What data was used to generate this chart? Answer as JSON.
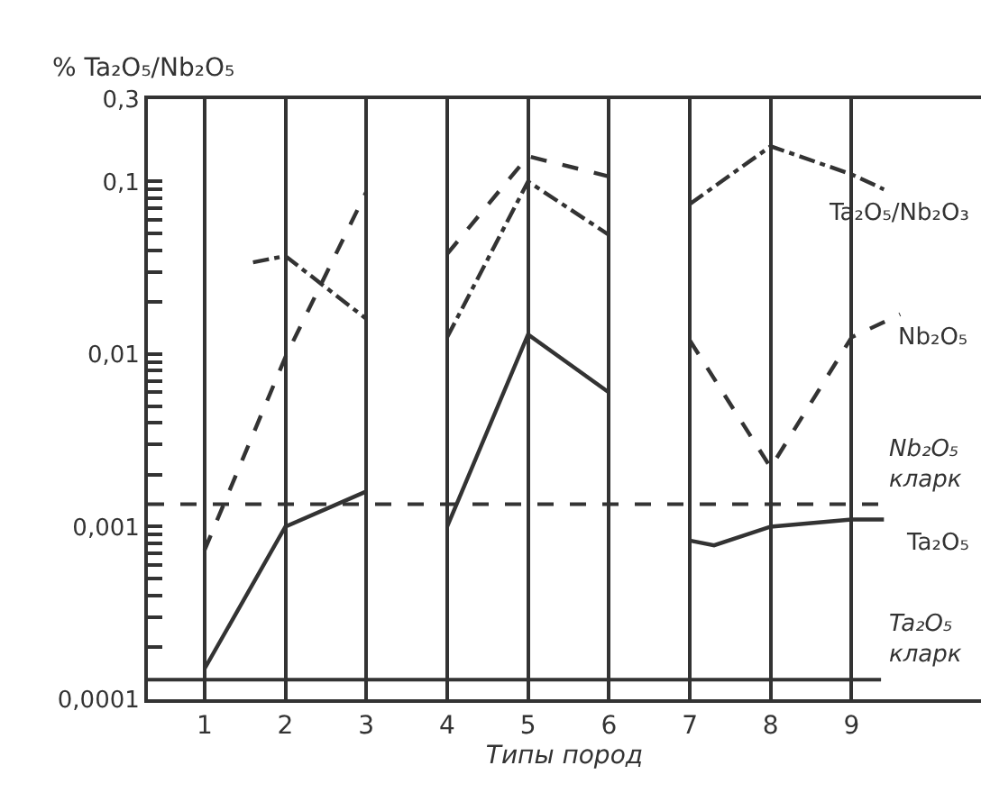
{
  "chart_data": {
    "type": "line",
    "ylabel": "% Ta₂O₅/Nb₂O₅",
    "xlabel": "Типы пород",
    "log": "y",
    "grid": "x",
    "legend": false,
    "marker": "none",
    "xlim": [
      0.3,
      10.6
    ],
    "xticks": [
      1,
      2,
      3,
      4,
      5,
      6,
      7,
      8,
      9
    ],
    "ylim": [
      0.0001,
      0.3
    ],
    "yticks": [
      {
        "value": 0.0001,
        "label": "0,0001"
      },
      {
        "value": 0.0002,
        "label": null
      },
      {
        "value": 0.0003,
        "label": null
      },
      {
        "value": 0.0004,
        "label": null
      },
      {
        "value": 0.0005,
        "label": null
      },
      {
        "value": 0.0006,
        "label": null
      },
      {
        "value": 0.0007,
        "label": null
      },
      {
        "value": 0.0008,
        "label": null
      },
      {
        "value": 0.0009,
        "label": null
      },
      {
        "value": 0.001,
        "label": "0,001"
      },
      {
        "value": 0.002,
        "label": null
      },
      {
        "value": 0.003,
        "label": null
      },
      {
        "value": 0.004,
        "label": null
      },
      {
        "value": 0.005,
        "label": null
      },
      {
        "value": 0.006,
        "label": null
      },
      {
        "value": 0.007,
        "label": null
      },
      {
        "value": 0.008,
        "label": null
      },
      {
        "value": 0.009,
        "label": null
      },
      {
        "value": 0.01,
        "label": "0,01"
      },
      {
        "value": 0.02,
        "label": null
      },
      {
        "value": 0.03,
        "label": null
      },
      {
        "value": 0.04,
        "label": null
      },
      {
        "value": 0.05,
        "label": null
      },
      {
        "value": 0.06,
        "label": null
      },
      {
        "value": 0.07,
        "label": null
      },
      {
        "value": 0.08,
        "label": null
      },
      {
        "value": 0.09,
        "label": null
      },
      {
        "value": 0.1,
        "label": "0,1"
      },
      {
        "value": 0.3,
        "label": "0,3"
      }
    ],
    "series": [
      {
        "name": "Ta₂O₅/Nb₂O₃",
        "color": "#333333",
        "line_style": "dashdot",
        "x": [
          1.6,
          2,
          3,
          3.5,
          4,
          5,
          6,
          6.5,
          7,
          8,
          9,
          9.4
        ],
        "values": [
          0.034,
          0.037,
          0.016,
          null,
          0.0125,
          0.1,
          0.049,
          null,
          0.074,
          0.16,
          0.11,
          0.09
        ]
      },
      {
        "name": "Nb₂O₅",
        "color": "#333333",
        "line_style": "dashed",
        "x": [
          1,
          2,
          3,
          3.5,
          4,
          5,
          6,
          6.5,
          7,
          8,
          9,
          9.6
        ],
        "values": [
          0.00073,
          0.0096,
          0.087,
          null,
          0.038,
          0.14,
          0.107,
          null,
          0.012,
          0.0022,
          0.0125,
          0.017
        ]
      },
      {
        "name": "Ta₂O₅",
        "color": "#333333",
        "line_style": "solid",
        "x": [
          1,
          2,
          3,
          3.5,
          4,
          5,
          6,
          6.5,
          7,
          7.3,
          8,
          9,
          9.4
        ],
        "values": [
          0.00015,
          0.001,
          0.0016,
          null,
          0.001,
          0.013,
          0.006,
          null,
          0.00083,
          0.00078,
          0.001,
          0.0011,
          0.0011
        ]
      }
    ],
    "ref_lines": [
      {
        "axis": "y",
        "value": 0.00135,
        "label": "Nb₂O₅ кларк",
        "line_style": "dashed",
        "color": "#333333"
      },
      {
        "axis": "y",
        "value": 0.00013,
        "label": "Ta₂O₅ кларк",
        "line_style": "solid",
        "color": "#333333"
      }
    ]
  }
}
